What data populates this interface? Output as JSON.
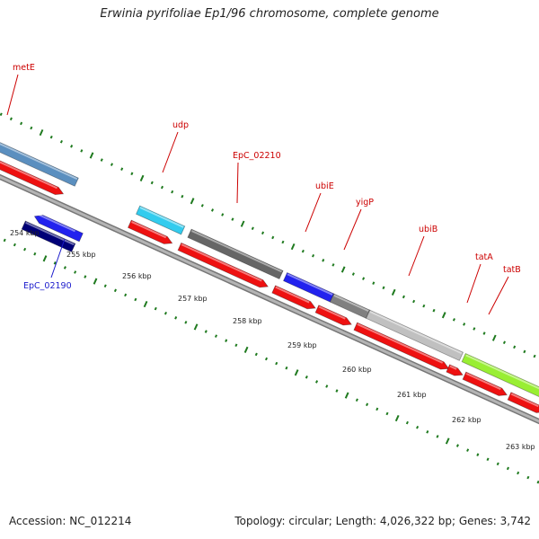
{
  "title": "Erwinia pyrifoliae Ep1/96 chromosome, complete genome",
  "footer": {
    "accession": "Accession: NC_012214",
    "summary": "Topology: circular; Length: 4,026,322 bp; Genes: 3,742"
  },
  "colors": {
    "background": "#ffffff",
    "backbone": "#8a8a8a",
    "tick": "#1f7a1f",
    "label_forward": "#cc0000",
    "label_reverse": "#1a1acc",
    "cds": "#ee1111"
  },
  "ticks": [
    {
      "label": "254 kbp"
    },
    {
      "label": "255 kbp"
    },
    {
      "label": "256 kbp"
    },
    {
      "label": "257 kbp"
    },
    {
      "label": "258 kbp"
    },
    {
      "label": "259 kbp"
    },
    {
      "label": "260 kbp"
    },
    {
      "label": "261 kbp"
    },
    {
      "label": "262 kbp"
    },
    {
      "label": "263 kbp"
    }
  ],
  "genes": [
    {
      "name": "metE",
      "strand": "forward",
      "color": "#5b8fbf",
      "label_color": "#cc0000"
    },
    {
      "name": "udp",
      "strand": "forward",
      "color": "#33ccee",
      "label_color": "#cc0000"
    },
    {
      "name": "EpC_02210",
      "strand": "forward",
      "color": "#666666",
      "label_color": "#cc0000"
    },
    {
      "name": "ubiE",
      "strand": "forward",
      "color": "#2222ee",
      "label_color": "#cc0000"
    },
    {
      "name": "yigP",
      "strand": "forward",
      "color": "#808080",
      "label_color": "#cc0000"
    },
    {
      "name": "ubiB",
      "strand": "forward",
      "color": "#c0c0c0",
      "label_color": "#cc0000"
    },
    {
      "name": "tatA",
      "strand": "forward",
      "color": "#99ee33",
      "label_color": "#cc0000"
    },
    {
      "name": "tatB",
      "strand": "forward",
      "color": "#99ee33",
      "label_color": "#cc0000"
    },
    {
      "name": "EpC_02190",
      "strand": "reverse",
      "color": "#000077",
      "label_color": "#1a1acc"
    }
  ],
  "reverse_extra": {
    "color": "#2222ee"
  }
}
